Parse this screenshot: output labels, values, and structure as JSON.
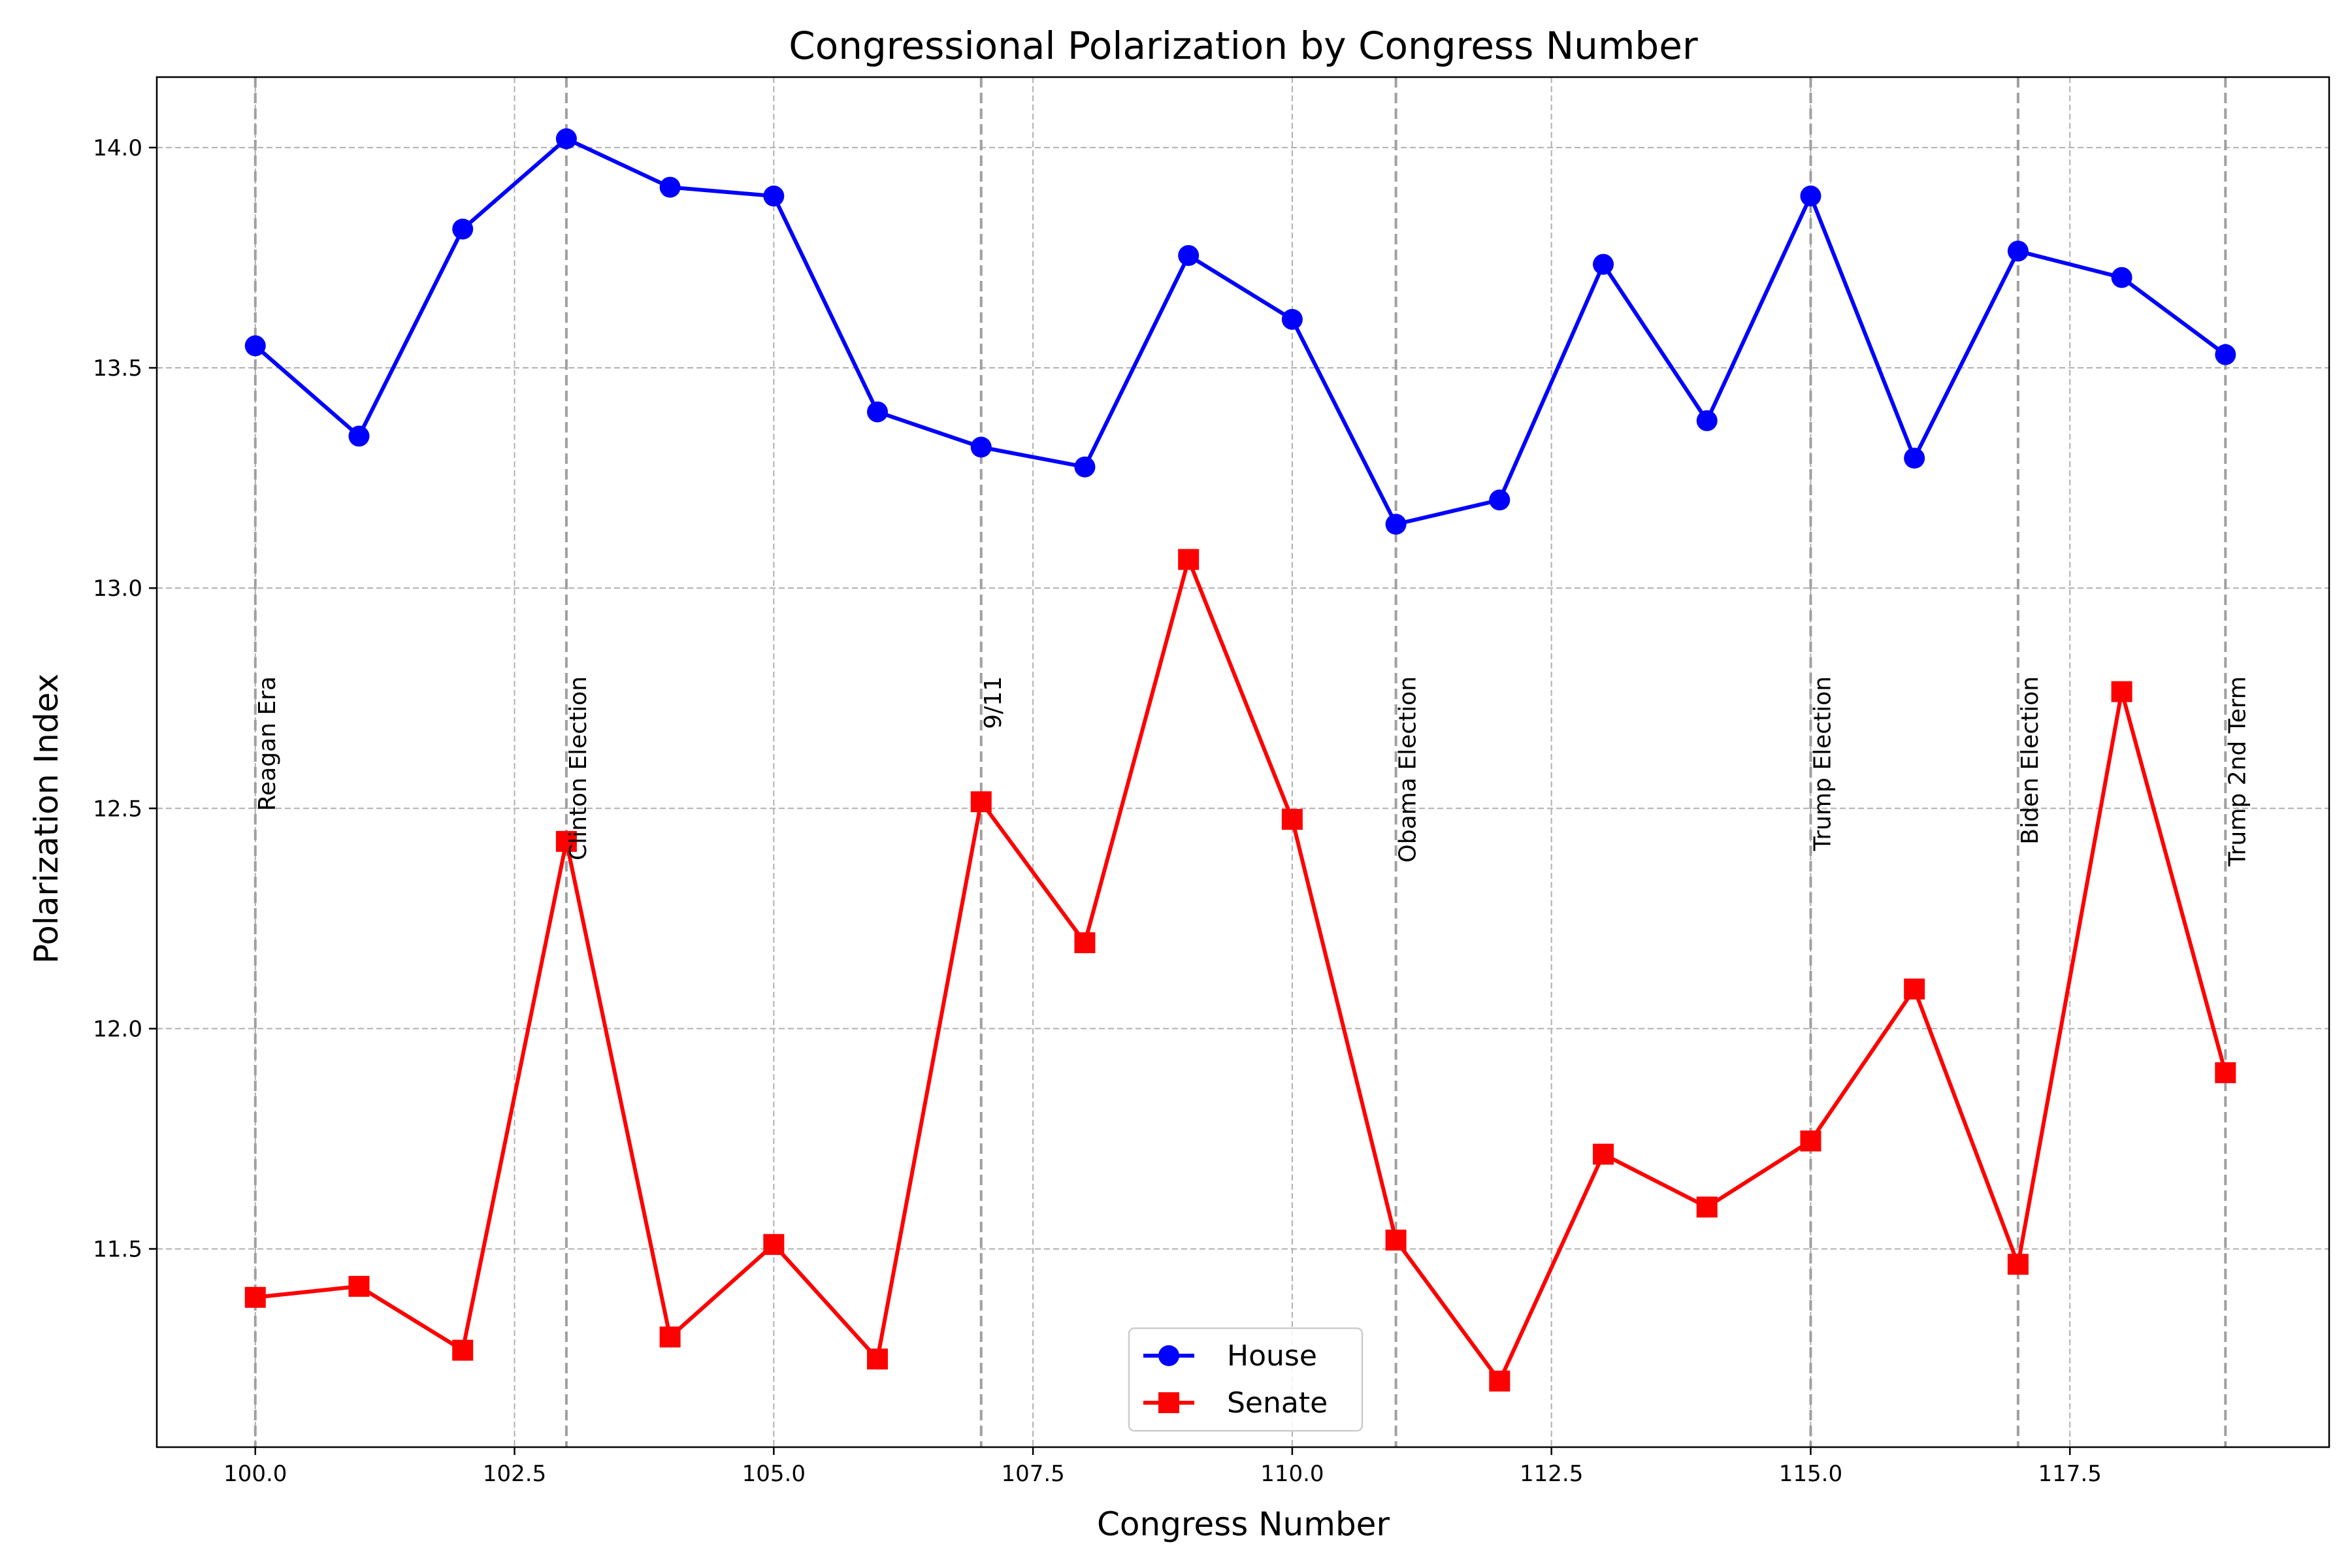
{
  "chart_data": {
    "type": "line",
    "title": "Congressional Polarization by Congress Number",
    "xlabel": "Congress Number",
    "ylabel": "Polarization Index",
    "xlim": [
      99.05,
      120.0
    ],
    "ylim": [
      11.05,
      14.16
    ],
    "xticks": [
      100.0,
      102.5,
      105.0,
      107.5,
      110.0,
      112.5,
      115.0,
      117.5
    ],
    "xtick_labels": [
      "100.0",
      "102.5",
      "105.0",
      "107.5",
      "110.0",
      "112.5",
      "115.0",
      "117.5"
    ],
    "yticks": [
      11.5,
      12.0,
      12.5,
      13.0,
      13.5,
      14.0
    ],
    "ytick_labels": [
      "11.5",
      "12.0",
      "12.5",
      "13.0",
      "13.5",
      "14.0"
    ],
    "grid": true,
    "legend_position": "bottom-center",
    "x": [
      100,
      101,
      102,
      103,
      104,
      105,
      106,
      107,
      108,
      109,
      110,
      111,
      112,
      113,
      114,
      115,
      116,
      117,
      118,
      119
    ],
    "series": [
      {
        "name": "House",
        "color": "#0000ff",
        "marker": "circle",
        "values": [
          13.55,
          13.345,
          13.815,
          14.02,
          13.91,
          13.89,
          13.4,
          13.32,
          13.275,
          13.755,
          13.61,
          13.145,
          13.2,
          13.735,
          13.38,
          13.89,
          13.295,
          13.765,
          13.705,
          13.53
        ]
      },
      {
        "name": "Senate",
        "color": "#ff0000",
        "marker": "square",
        "values": [
          11.39,
          11.415,
          11.27,
          12.425,
          11.3,
          11.51,
          11.25,
          12.515,
          12.195,
          13.065,
          12.475,
          11.52,
          11.2,
          11.715,
          11.595,
          11.745,
          12.09,
          11.465,
          12.765,
          11.9
        ]
      }
    ],
    "annotations": [
      {
        "x": 100,
        "label": "Reagan Era"
      },
      {
        "x": 103,
        "label": "Clinton Election"
      },
      {
        "x": 107,
        "label": "9/11"
      },
      {
        "x": 111,
        "label": "Obama Election"
      },
      {
        "x": 115,
        "label": "Trump Election"
      },
      {
        "x": 117,
        "label": "Biden Election"
      },
      {
        "x": 119,
        "label": "Trump 2nd Term"
      }
    ],
    "annotation_y": 12.8
  }
}
